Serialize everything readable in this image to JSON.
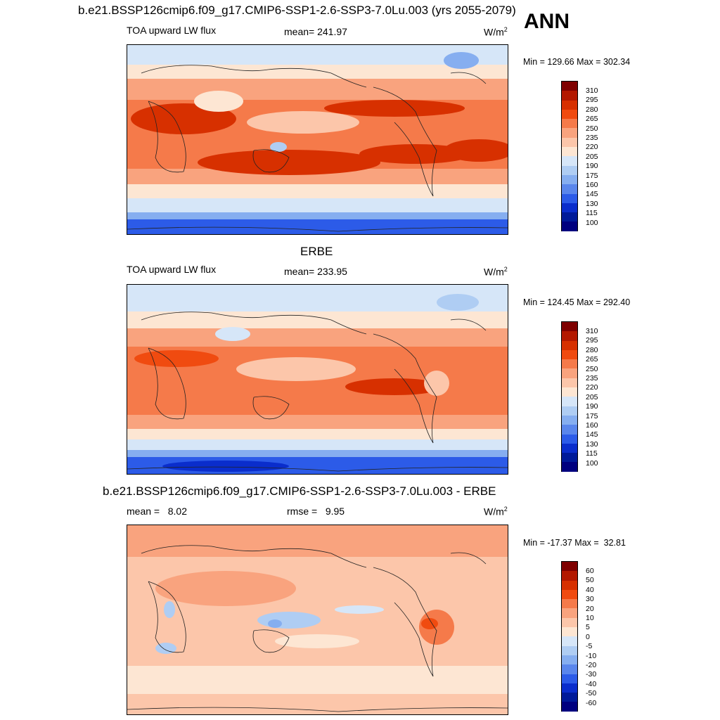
{
  "main_title": "b.e21.BSSP126cmip6.f09_g17.CMIP6-SSP1-2.6-SSP3-7.0Lu.003 (yrs 2055-2079)",
  "season": "ANN",
  "panels": [
    {
      "title": "",
      "variable": "TOA upward LW flux",
      "stat": "mean= 241.97",
      "units": "W/m",
      "units_sup": "2",
      "minmax": "Min = 129.66 Max = 302.34",
      "levels": [
        "310",
        "295",
        "280",
        "265",
        "250",
        "235",
        "220",
        "205",
        "190",
        "175",
        "160",
        "145",
        "130",
        "115",
        "100"
      ]
    },
    {
      "title": "ERBE",
      "variable": "TOA upward LW flux",
      "stat": "mean= 233.95",
      "units": "W/m",
      "units_sup": "2",
      "minmax": "Min = 124.45 Max = 292.40",
      "levels": [
        "310",
        "295",
        "280",
        "265",
        "250",
        "235",
        "220",
        "205",
        "190",
        "175",
        "160",
        "145",
        "130",
        "115",
        "100"
      ]
    },
    {
      "title": "b.e21.BSSP126cmip6.f09_g17.CMIP6-SSP1-2.6-SSP3-7.0Lu.003 - ERBE",
      "variable": "mean =   8.02",
      "stat": "rmse =   9.95",
      "units": "W/m",
      "units_sup": "2",
      "minmax": "Min = -17.37 Max =  32.81",
      "levels": [
        "60",
        "50",
        "40",
        "30",
        "20",
        "10",
        "5",
        "0",
        "-5",
        "-10",
        "-20",
        "-30",
        "-40",
        "-50",
        "-60"
      ]
    }
  ],
  "colors": {
    "ramp": [
      "#7f0000",
      "#b31800",
      "#d73000",
      "#f04b10",
      "#f57a4a",
      "#f9a37e",
      "#fcc6aa",
      "#fde6d3",
      "#d6e6f8",
      "#afcdf3",
      "#86aef0",
      "#5a86ec",
      "#2c5be8",
      "#0a2dcc",
      "#001a99",
      "#00007f"
    ]
  }
}
